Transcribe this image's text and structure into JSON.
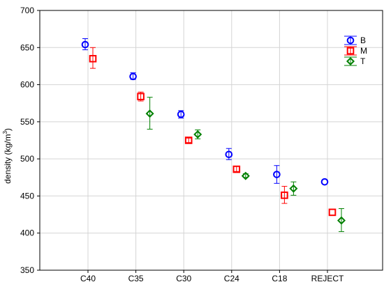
{
  "chart_data": {
    "type": "scatter",
    "categories": [
      "C40",
      "C35",
      "C30",
      "C24",
      "C18",
      "REJECT"
    ],
    "ylabel": "density (kg/m³)",
    "ylabel_parts": {
      "main": "density (kg/m",
      "sup": "3",
      "close": ")"
    },
    "ylim": [
      350,
      700
    ],
    "yticks": [
      350,
      400,
      450,
      500,
      550,
      600,
      650,
      700
    ],
    "grid": true,
    "legend_position": "top-right",
    "series": [
      {
        "name": "B",
        "marker": "circle",
        "color": "#0000ff",
        "values": [
          654,
          611,
          560,
          506,
          479,
          469
        ],
        "lower": [
          647,
          607,
          555,
          499,
          467,
          null
        ],
        "upper": [
          662,
          616,
          565,
          514,
          491,
          null
        ]
      },
      {
        "name": "M",
        "marker": "square",
        "color": "#ff0000",
        "values": [
          635,
          584,
          525,
          486,
          451,
          428
        ],
        "lower": [
          622,
          578,
          522,
          483,
          440,
          null
        ],
        "upper": [
          650,
          590,
          528,
          490,
          463,
          null
        ]
      },
      {
        "name": "T",
        "marker": "diamond",
        "color": "#008000",
        "values": [
          null,
          561,
          533,
          477,
          460,
          417
        ],
        "lower": [
          null,
          540,
          527,
          475,
          451,
          402
        ],
        "upper": [
          null,
          583,
          539,
          480,
          469,
          433
        ]
      }
    ]
  }
}
